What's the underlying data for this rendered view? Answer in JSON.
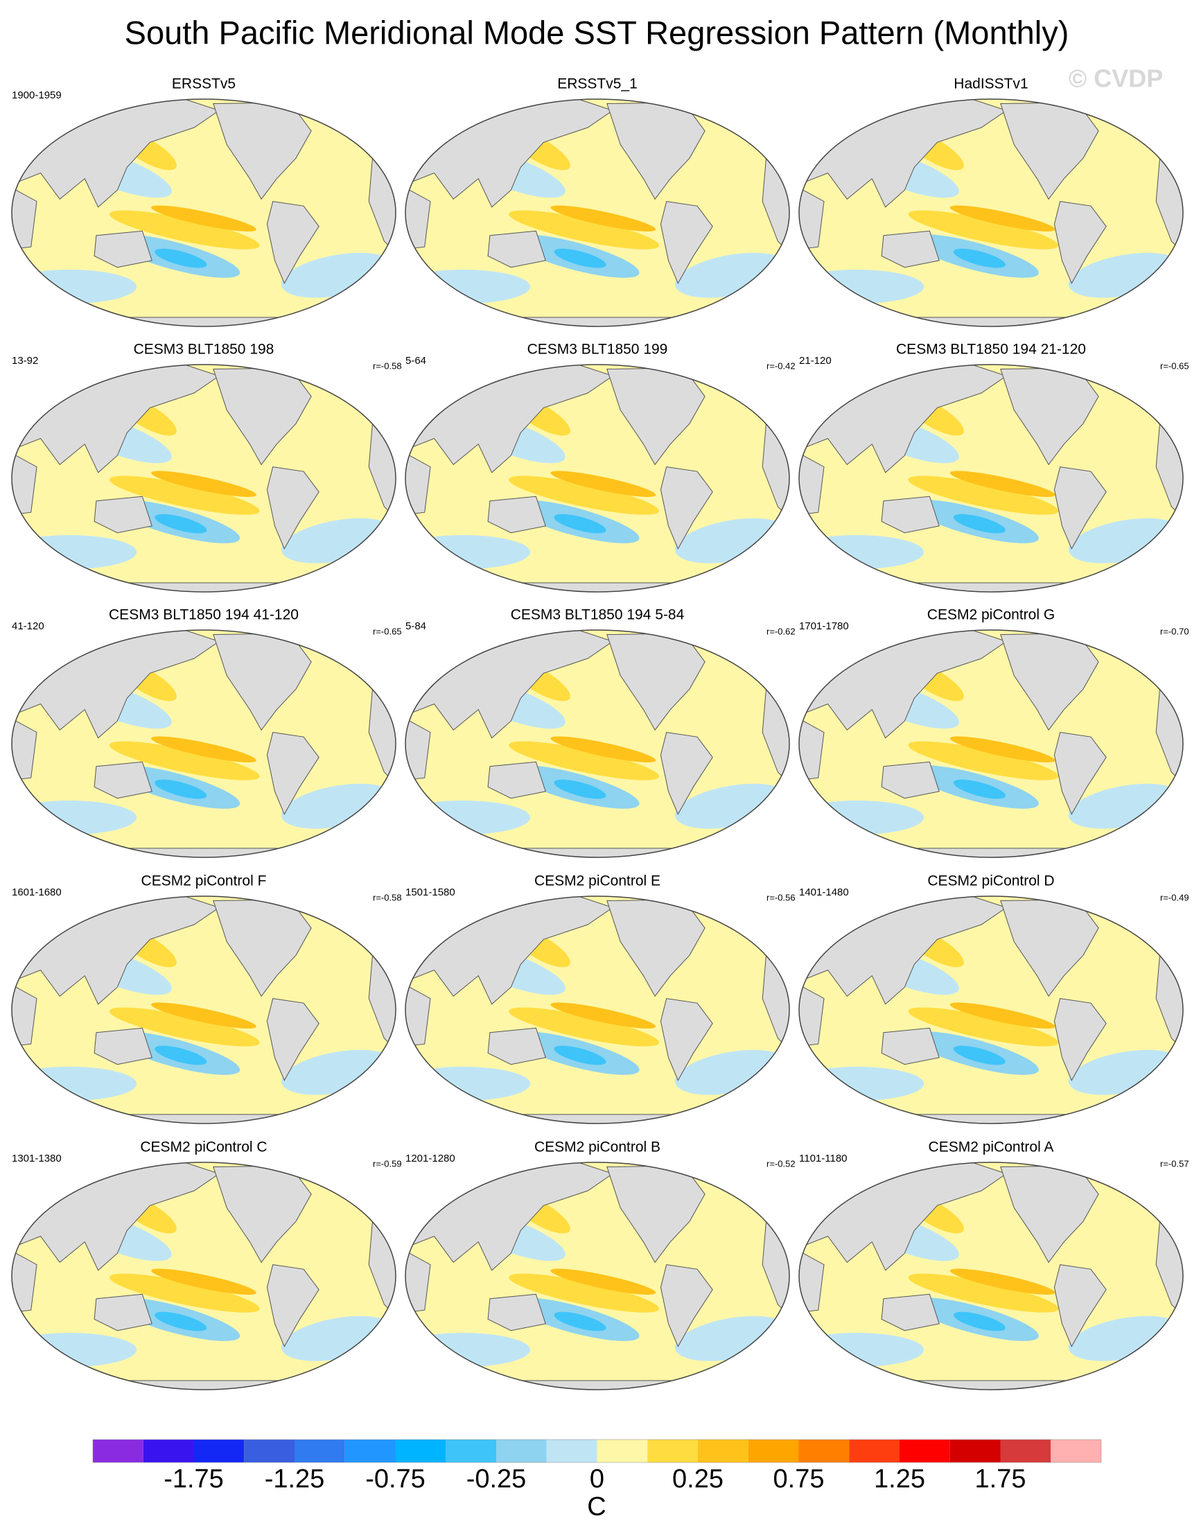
{
  "title": "South Pacific Meridional Mode SST Regression Pattern (Monthly)",
  "watermark": "© CVDP",
  "panels": [
    {
      "title": "ERSSTv5",
      "period": "1900-1959"
    },
    {
      "title": "ERSSTv5_1"
    },
    {
      "title": "HadISSTv1"
    },
    {
      "title": "CESM3 BLT1850 198",
      "period": "13-92",
      "corr": "r=-0.58"
    },
    {
      "title": "CESM3 BLT1850 199",
      "period": "5-64",
      "corr": "r=-0.42"
    },
    {
      "title": "CESM3 BLT1850 194 21-120",
      "period": "21-120",
      "corr": "r=-0.65"
    },
    {
      "title": "CESM3 BLT1850 194 41-120",
      "period": "41-120",
      "corr": "r=-0.65"
    },
    {
      "title": "CESM3 BLT1850 194 5-84",
      "period": "5-84",
      "corr": "r=-0.62"
    },
    {
      "title": "CESM2 piControl G",
      "period": "1701-1780",
      "corr": "r=-0.70"
    },
    {
      "title": "CESM2 piControl F",
      "period": "1601-1680",
      "corr": "r=-0.58"
    },
    {
      "title": "CESM2 piControl E",
      "period": "1501-1580",
      "corr": "r=-0.56"
    },
    {
      "title": "CESM2 piControl D",
      "period": "1401-1480",
      "corr": "r=-0.49"
    },
    {
      "title": "CESM2 piControl C",
      "period": "1301-1380",
      "corr": "r=-0.59"
    },
    {
      "title": "CESM2 piControl B",
      "period": "1201-1280",
      "corr": "r=-0.52"
    },
    {
      "title": "CESM2 piControl A",
      "period": "1101-1180",
      "corr": "r=-0.57"
    }
  ],
  "colorbar": {
    "colors": [
      "#8a2be2",
      "#3a14ee",
      "#1428f5",
      "#3a5ee0",
      "#2f7bef",
      "#2196ff",
      "#00b4ff",
      "#3ec4f8",
      "#8ed3f0",
      "#bfe5f5",
      "#fff7a8",
      "#ffdd40",
      "#ffc21a",
      "#ffa500",
      "#ff7f00",
      "#ff3e10",
      "#ff0000",
      "#d40000",
      "#d63a3a",
      "#ffb0b0"
    ],
    "labels": [
      "-1.75",
      "-1.25",
      "-0.75",
      "-0.25",
      "0",
      "0.25",
      "0.75",
      "1.25",
      "1.75"
    ],
    "unit": "C"
  }
}
